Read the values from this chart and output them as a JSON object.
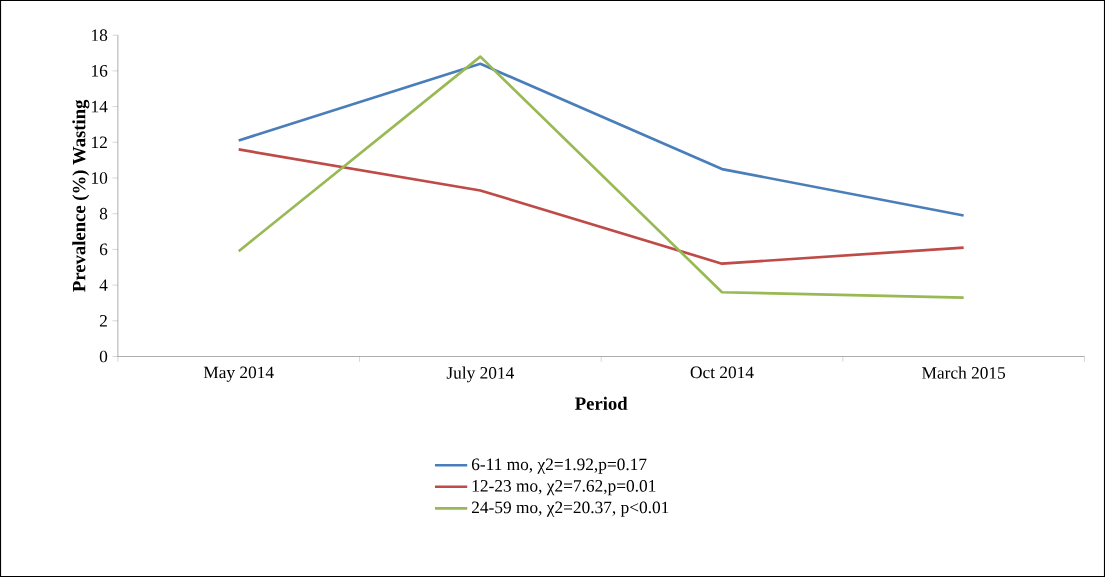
{
  "chart_data": {
    "type": "line",
    "xlabel": "Period",
    "ylabel": "Prevalence (%) Wasting",
    "categories": [
      "May 2014",
      "July 2014",
      "Oct 2014",
      "March 2015"
    ],
    "series": [
      {
        "name": "6-11 mo, χ2=1.92,p=0.17",
        "color": "#4a7ebb",
        "values": [
          12.1,
          16.4,
          10.5,
          7.9
        ]
      },
      {
        "name": "12-23 mo, χ2=7.62,p=0.01",
        "color": "#be4b48",
        "values": [
          11.6,
          9.3,
          5.2,
          6.1
        ]
      },
      {
        "name": "24-59 mo, χ2=20.37, p<0.01",
        "color": "#98b954",
        "values": [
          5.9,
          16.8,
          3.6,
          3.3
        ]
      }
    ],
    "ylim": [
      0,
      18
    ],
    "yticks": [
      0,
      2,
      4,
      6,
      8,
      10,
      12,
      14,
      16,
      18
    ],
    "grid": false,
    "legend": "bottom",
    "marker": "none",
    "line_style": "solid"
  }
}
